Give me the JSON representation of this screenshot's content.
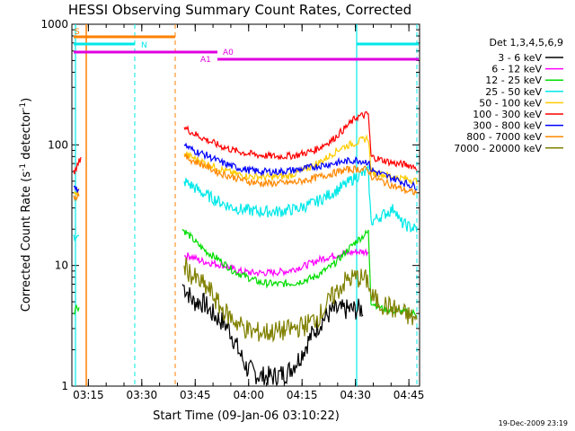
{
  "chart_data": {
    "type": "line",
    "title": "HESSI Observing Summary Count Rates, Corrected",
    "xlabel": "Start Time (09-Jan-06 03:10:22)",
    "ylabel": "Corrected Count Rate (s",
    "ylabel_sup1": "-1",
    "ylabel_mid": " detector",
    "ylabel_sup2": "-1",
    "ylabel_end": ")",
    "footer": "19-Dec-2009 23:19",
    "yscale": "log",
    "ylim": [
      1,
      1000
    ],
    "xlim": [
      "03:10:22",
      "04:48:00"
    ],
    "x_ticks": [
      "03:15",
      "03:30",
      "03:45",
      "04:00",
      "04:15",
      "04:30",
      "04:45"
    ],
    "y_ticks": [
      "1",
      "10",
      "100",
      "1000"
    ],
    "legend_title": "Det 1,3,4,5,6,9",
    "legend_position": "right",
    "series": [
      {
        "name": "3 - 6 keV",
        "color": "#000000",
        "points": [
          [
            203,
            7
          ],
          [
            209,
            6
          ],
          [
            215,
            5
          ],
          [
            222,
            5
          ],
          [
            228,
            4.8
          ],
          [
            236,
            4
          ],
          [
            246,
            3.5
          ],
          [
            255,
            3
          ],
          [
            265,
            2
          ],
          [
            275,
            1.4
          ],
          [
            290,
            1.2
          ],
          [
            305,
            1.2
          ],
          [
            320,
            1.3
          ],
          [
            333,
            1.7
          ],
          [
            345,
            2.5
          ],
          [
            358,
            3.5
          ],
          [
            370,
            4.2
          ],
          [
            385,
            4.3
          ],
          [
            397,
            4.3
          ],
          [
            404,
            4.4
          ]
        ]
      },
      {
        "name": "6 - 12 keV",
        "color": "#ff00ff",
        "points": [
          [
            205,
            12
          ],
          [
            212,
            12
          ],
          [
            222,
            11
          ],
          [
            235,
            10.5
          ],
          [
            250,
            10
          ],
          [
            265,
            9
          ],
          [
            280,
            8.7
          ],
          [
            300,
            8.7
          ],
          [
            320,
            9
          ],
          [
            340,
            10
          ],
          [
            360,
            11.5
          ],
          [
            380,
            12.5
          ],
          [
            397,
            13
          ],
          [
            410,
            13
          ]
        ]
      },
      {
        "name": "12 - 25 keV",
        "color": "#00dd00",
        "points": [
          [
            82,
            4
          ],
          [
            84,
            4.5
          ],
          [
            88,
            4.5
          ],
          [
            203,
            20
          ],
          [
            210,
            18
          ],
          [
            220,
            15
          ],
          [
            230,
            13
          ],
          [
            245,
            11
          ],
          [
            260,
            9
          ],
          [
            275,
            8
          ],
          [
            290,
            7.2
          ],
          [
            310,
            7
          ],
          [
            330,
            7.2
          ],
          [
            350,
            8
          ],
          [
            370,
            10
          ],
          [
            385,
            13
          ],
          [
            397,
            16
          ],
          [
            410,
            19
          ],
          [
            413,
            5
          ],
          [
            425,
            4.4
          ],
          [
            440,
            4.2
          ],
          [
            455,
            4.1
          ],
          [
            464,
            4
          ]
        ]
      },
      {
        "name": "25 - 50 keV",
        "color": "#00e8e8",
        "points": [
          [
            82,
            18
          ],
          [
            84,
            16
          ],
          [
            88,
            17
          ],
          [
            205,
            50
          ],
          [
            215,
            45
          ],
          [
            225,
            40
          ],
          [
            240,
            35
          ],
          [
            255,
            31
          ],
          [
            270,
            29
          ],
          [
            290,
            28
          ],
          [
            310,
            28
          ],
          [
            330,
            29.5
          ],
          [
            350,
            33
          ],
          [
            370,
            40
          ],
          [
            385,
            47
          ],
          [
            397,
            55
          ],
          [
            410,
            60
          ],
          [
            413,
            23
          ],
          [
            425,
            26
          ],
          [
            440,
            30
          ],
          [
            445,
            23
          ],
          [
            455,
            21
          ],
          [
            464,
            20
          ]
        ]
      },
      {
        "name": "50 - 100 keV",
        "color": "#ffcc00",
        "points": [
          [
            82,
            40
          ],
          [
            84,
            38
          ],
          [
            88,
            42
          ],
          [
            205,
            85
          ],
          [
            215,
            78
          ],
          [
            230,
            70
          ],
          [
            245,
            63
          ],
          [
            260,
            58
          ],
          [
            275,
            55
          ],
          [
            300,
            54
          ],
          [
            320,
            55
          ],
          [
            340,
            62
          ],
          [
            360,
            75
          ],
          [
            380,
            95
          ],
          [
            397,
            105
          ],
          [
            410,
            115
          ],
          [
            413,
            60
          ],
          [
            425,
            57
          ],
          [
            440,
            54
          ],
          [
            455,
            52
          ],
          [
            464,
            50
          ]
        ]
      },
      {
        "name": "100 - 300 keV",
        "color": "#ff0000",
        "points": [
          [
            82,
            62
          ],
          [
            84,
            60
          ],
          [
            90,
            80
          ],
          [
            205,
            140
          ],
          [
            215,
            125
          ],
          [
            230,
            110
          ],
          [
            245,
            98
          ],
          [
            260,
            90
          ],
          [
            275,
            85
          ],
          [
            290,
            82
          ],
          [
            310,
            80
          ],
          [
            330,
            82
          ],
          [
            350,
            90
          ],
          [
            370,
            110
          ],
          [
            385,
            140
          ],
          [
            397,
            170
          ],
          [
            410,
            180
          ],
          [
            413,
            80
          ],
          [
            425,
            75
          ],
          [
            440,
            70
          ],
          [
            455,
            68
          ],
          [
            464,
            65
          ]
        ]
      },
      {
        "name": "300 - 800 keV",
        "color": "#0000ff",
        "points": [
          [
            82,
            45
          ],
          [
            84,
            42
          ],
          [
            88,
            44
          ],
          [
            205,
            100
          ],
          [
            215,
            90
          ],
          [
            230,
            82
          ],
          [
            245,
            72
          ],
          [
            260,
            66
          ],
          [
            275,
            62
          ],
          [
            290,
            60
          ],
          [
            310,
            60
          ],
          [
            330,
            62
          ],
          [
            350,
            66
          ],
          [
            370,
            70
          ],
          [
            385,
            73
          ],
          [
            397,
            75
          ],
          [
            410,
            72
          ],
          [
            413,
            62
          ],
          [
            425,
            57
          ],
          [
            440,
            52
          ],
          [
            455,
            47
          ],
          [
            464,
            45
          ]
        ]
      },
      {
        "name": "800 - 7000 keV",
        "color": "#ff8800",
        "points": [
          [
            82,
            38
          ],
          [
            84,
            36
          ],
          [
            88,
            40
          ],
          [
            205,
            80
          ],
          [
            215,
            74
          ],
          [
            230,
            66
          ],
          [
            245,
            58
          ],
          [
            260,
            54
          ],
          [
            275,
            50
          ],
          [
            290,
            48
          ],
          [
            310,
            48
          ],
          [
            330,
            49
          ],
          [
            350,
            53
          ],
          [
            370,
            58
          ],
          [
            385,
            62
          ],
          [
            397,
            63
          ],
          [
            410,
            62
          ],
          [
            413,
            55
          ],
          [
            425,
            50
          ],
          [
            440,
            45
          ],
          [
            455,
            41
          ],
          [
            464,
            40
          ]
        ]
      },
      {
        "name": "7000 - 20000 keV",
        "color": "#808000",
        "points": [
          [
            205,
            10
          ],
          [
            215,
            8
          ],
          [
            225,
            7
          ],
          [
            235,
            6
          ],
          [
            245,
            4.5
          ],
          [
            255,
            3.8
          ],
          [
            265,
            3.3
          ],
          [
            280,
            2.8
          ],
          [
            300,
            2.8
          ],
          [
            320,
            2.9
          ],
          [
            340,
            3.2
          ],
          [
            355,
            3.8
          ],
          [
            370,
            5.5
          ],
          [
            385,
            7.5
          ],
          [
            397,
            8
          ],
          [
            410,
            7.5
          ],
          [
            413,
            5.5
          ],
          [
            425,
            4.8
          ],
          [
            440,
            4.3
          ],
          [
            455,
            3.8
          ],
          [
            464,
            3.5
          ]
        ]
      }
    ],
    "flags": [
      {
        "label": "S",
        "color": "#ff8000",
        "value": 800
      },
      {
        "label": "N",
        "color": "#00e8e8",
        "value": 680
      },
      {
        "label": "A0",
        "color": "#e000e0",
        "value": 580
      },
      {
        "label": "A1",
        "color": "#e000e0",
        "value": 500
      }
    ]
  }
}
